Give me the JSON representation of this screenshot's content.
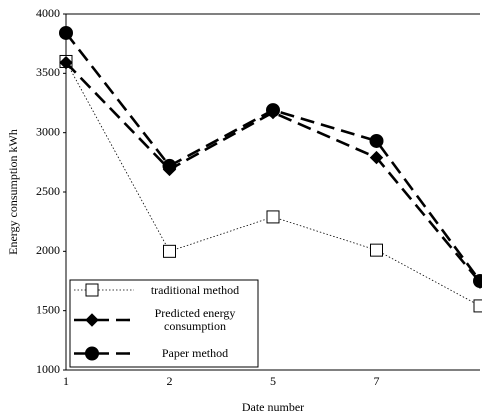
{
  "chart_data": {
    "type": "line",
    "x_label": "Date number",
    "y_label": "Energy consumption kWh",
    "categories": [
      "1",
      "2",
      "5",
      "7",
      null
    ],
    "series": [
      {
        "name": "traditional method",
        "color": "#000000",
        "style": "dotted",
        "marker": "square",
        "values": [
          3600,
          2000,
          2290,
          2010,
          1540
        ]
      },
      {
        "name": "Predicted energy consumption",
        "color": "#000000",
        "style": "dashed",
        "marker": "diamond",
        "values": [
          3590,
          2690,
          3170,
          2790,
          1740
        ]
      },
      {
        "name": "Paper method",
        "color": "#000000",
        "style": "dashed",
        "marker": "circle",
        "values": [
          3840,
          2720,
          3190,
          2930,
          1750
        ]
      }
    ],
    "ylim": [
      1000,
      4000
    ],
    "yticks": [
      1000,
      1500,
      2000,
      2500,
      3000,
      3500,
      4000
    ],
    "legend": "lower left"
  }
}
